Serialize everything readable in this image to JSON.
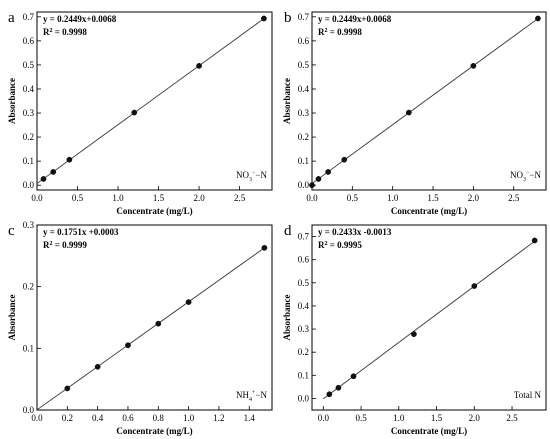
{
  "chart_data": [
    {
      "panel_label": "a",
      "type": "scatter",
      "xlabel": "Concentrate (mg/L)",
      "ylabel": "Absorbance",
      "xlim": [
        0,
        2.9
      ],
      "ylim": [
        -0.02,
        0.72
      ],
      "xticks": [
        0.0,
        0.5,
        1.0,
        1.5,
        2.0,
        2.5
      ],
      "yticks": [
        0.0,
        0.1,
        0.2,
        0.3,
        0.4,
        0.5,
        0.6,
        0.7
      ],
      "tick_labels_x": [
        "0.0",
        "0.5",
        "1.0",
        "1.5",
        "2.0",
        "2.5"
      ],
      "tick_labels_y": [
        "0.0",
        "0.1",
        "0.2",
        "0.3",
        "0.4",
        "0.5",
        "0.6",
        "0.7"
      ],
      "points": [
        [
          0.08,
          0.026
        ],
        [
          0.2,
          0.055
        ],
        [
          0.4,
          0.106
        ],
        [
          1.2,
          0.302
        ],
        [
          2.0,
          0.496
        ],
        [
          2.8,
          0.693
        ]
      ],
      "fit": {
        "slope": 0.2449,
        "intercept": 0.0068,
        "x_range": [
          0.0,
          2.82
        ]
      },
      "equation": "y = 0.2449x+0.0068",
      "r2": "= 0.9998",
      "species_main": "NO",
      "species_sub": "3",
      "species_sup": "−",
      "species_tail": "−N"
    },
    {
      "panel_label": "b",
      "type": "scatter",
      "xlabel": "Concentrate (mg/L)",
      "ylabel": "Absorbance",
      "xlim": [
        0,
        2.9
      ],
      "ylim": [
        -0.02,
        0.72
      ],
      "xticks": [
        0.0,
        0.5,
        1.0,
        1.5,
        2.0,
        2.5
      ],
      "yticks": [
        0.0,
        0.1,
        0.2,
        0.3,
        0.4,
        0.5,
        0.6,
        0.7
      ],
      "tick_labels_x": [
        "0.0",
        "0.5",
        "1.0",
        "1.5",
        "2.0",
        "2.5"
      ],
      "tick_labels_y": [
        "0.0",
        "0.1",
        "0.2",
        "0.3",
        "0.4",
        "0.5",
        "0.6",
        "0.7"
      ],
      "points": [
        [
          0.0,
          0.0
        ],
        [
          0.08,
          0.026
        ],
        [
          0.2,
          0.055
        ],
        [
          0.4,
          0.106
        ],
        [
          1.2,
          0.302
        ],
        [
          2.0,
          0.496
        ],
        [
          2.8,
          0.693
        ]
      ],
      "fit": {
        "slope": 0.2449,
        "intercept": 0.0068,
        "x_range": [
          0.0,
          2.82
        ]
      },
      "equation": "y = 0.2449x+0.0068",
      "r2": "= 0.9998",
      "species_main": "NO",
      "species_sub": "3",
      "species_sup": "−",
      "species_tail": "−N"
    },
    {
      "panel_label": "c",
      "type": "scatter",
      "xlabel": "Concentrate (mg/L)",
      "ylabel": "Absorbance",
      "xlim": [
        0,
        1.55
      ],
      "ylim": [
        0,
        0.3
      ],
      "xticks": [
        0.0,
        0.2,
        0.4,
        0.6,
        0.8,
        1.0,
        1.2,
        1.4
      ],
      "yticks": [
        0.0,
        0.1,
        0.2,
        0.3
      ],
      "tick_labels_x": [
        "0.0",
        "0.2",
        "0.4",
        "0.6",
        "0.8",
        "1.0",
        "1.2",
        "1.4"
      ],
      "tick_labels_y": [
        "0.0",
        "0.1",
        "0.2",
        "0.3"
      ],
      "points": [
        [
          0.2,
          0.035
        ],
        [
          0.4,
          0.07
        ],
        [
          0.6,
          0.105
        ],
        [
          0.8,
          0.14
        ],
        [
          1.0,
          0.175
        ],
        [
          1.5,
          0.263
        ]
      ],
      "fit": {
        "slope": 0.1751,
        "intercept": 0.0003,
        "x_range": [
          0.0,
          1.5
        ]
      },
      "equation": "y = 0.1751x +0.0003",
      "r2": "= 0.9999",
      "species_main": "NH",
      "species_sub": "4",
      "species_sup": "+",
      "species_tail": "−N"
    },
    {
      "panel_label": "d",
      "type": "scatter",
      "xlabel": "Concentrate (mg/L)",
      "ylabel": "Absorbance",
      "xlim": [
        -0.15,
        2.95
      ],
      "ylim": [
        -0.05,
        0.75
      ],
      "xticks": [
        0.0,
        0.5,
        1.0,
        1.5,
        2.0,
        2.5
      ],
      "yticks": [
        0.0,
        0.1,
        0.2,
        0.3,
        0.4,
        0.5,
        0.6,
        0.7
      ],
      "tick_labels_x": [
        "0.0",
        "0.5",
        "1.0",
        "1.5",
        "2.0",
        "2.5"
      ],
      "tick_labels_y": [
        "0.0",
        "0.1",
        "0.2",
        "0.3",
        "0.4",
        "0.5",
        "0.6",
        "0.7"
      ],
      "points": [
        [
          0.08,
          0.018
        ],
        [
          0.2,
          0.046
        ],
        [
          0.4,
          0.096
        ],
        [
          1.2,
          0.278
        ],
        [
          2.0,
          0.486
        ],
        [
          2.8,
          0.683
        ]
      ],
      "fit": {
        "slope": 0.2433,
        "intercept": -0.0013,
        "x_range": [
          0.0,
          2.82
        ]
      },
      "equation": "y = 0.2433x -0.0013",
      "r2": "= 0.9995",
      "species_main": "Total N",
      "species_sub": "",
      "species_sup": "",
      "species_tail": ""
    }
  ]
}
